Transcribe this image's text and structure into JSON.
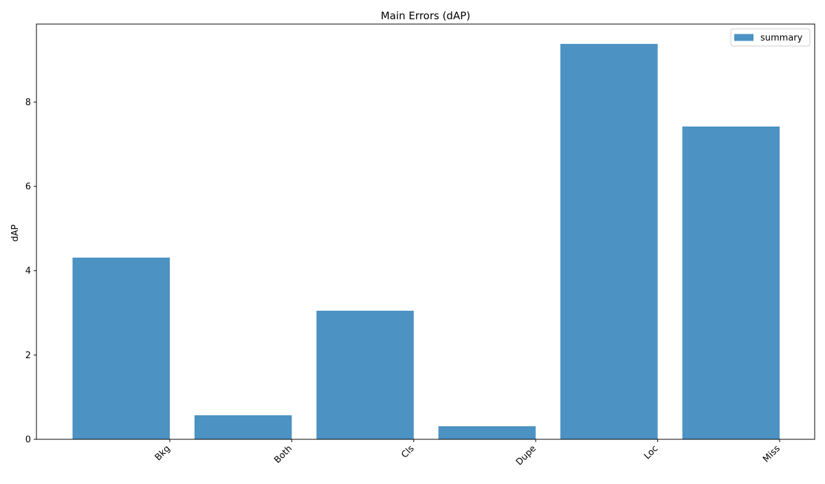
{
  "chart_data": {
    "type": "bar",
    "title": "Main Errors (dAP)",
    "xlabel": "",
    "ylabel": "dAP",
    "categories": [
      "Bkg",
      "Both",
      "Cls",
      "Dupe",
      "Loc",
      "Miss"
    ],
    "series": [
      {
        "name": "summary",
        "values": [
          4.31,
          0.57,
          3.05,
          0.31,
          9.38,
          7.42
        ],
        "color": "#4c92c3"
      }
    ],
    "ylim": [
      0,
      9.85
    ],
    "yticks": [
      0,
      2,
      4,
      6,
      8
    ],
    "grid": false,
    "legend_position": "top-right"
  }
}
